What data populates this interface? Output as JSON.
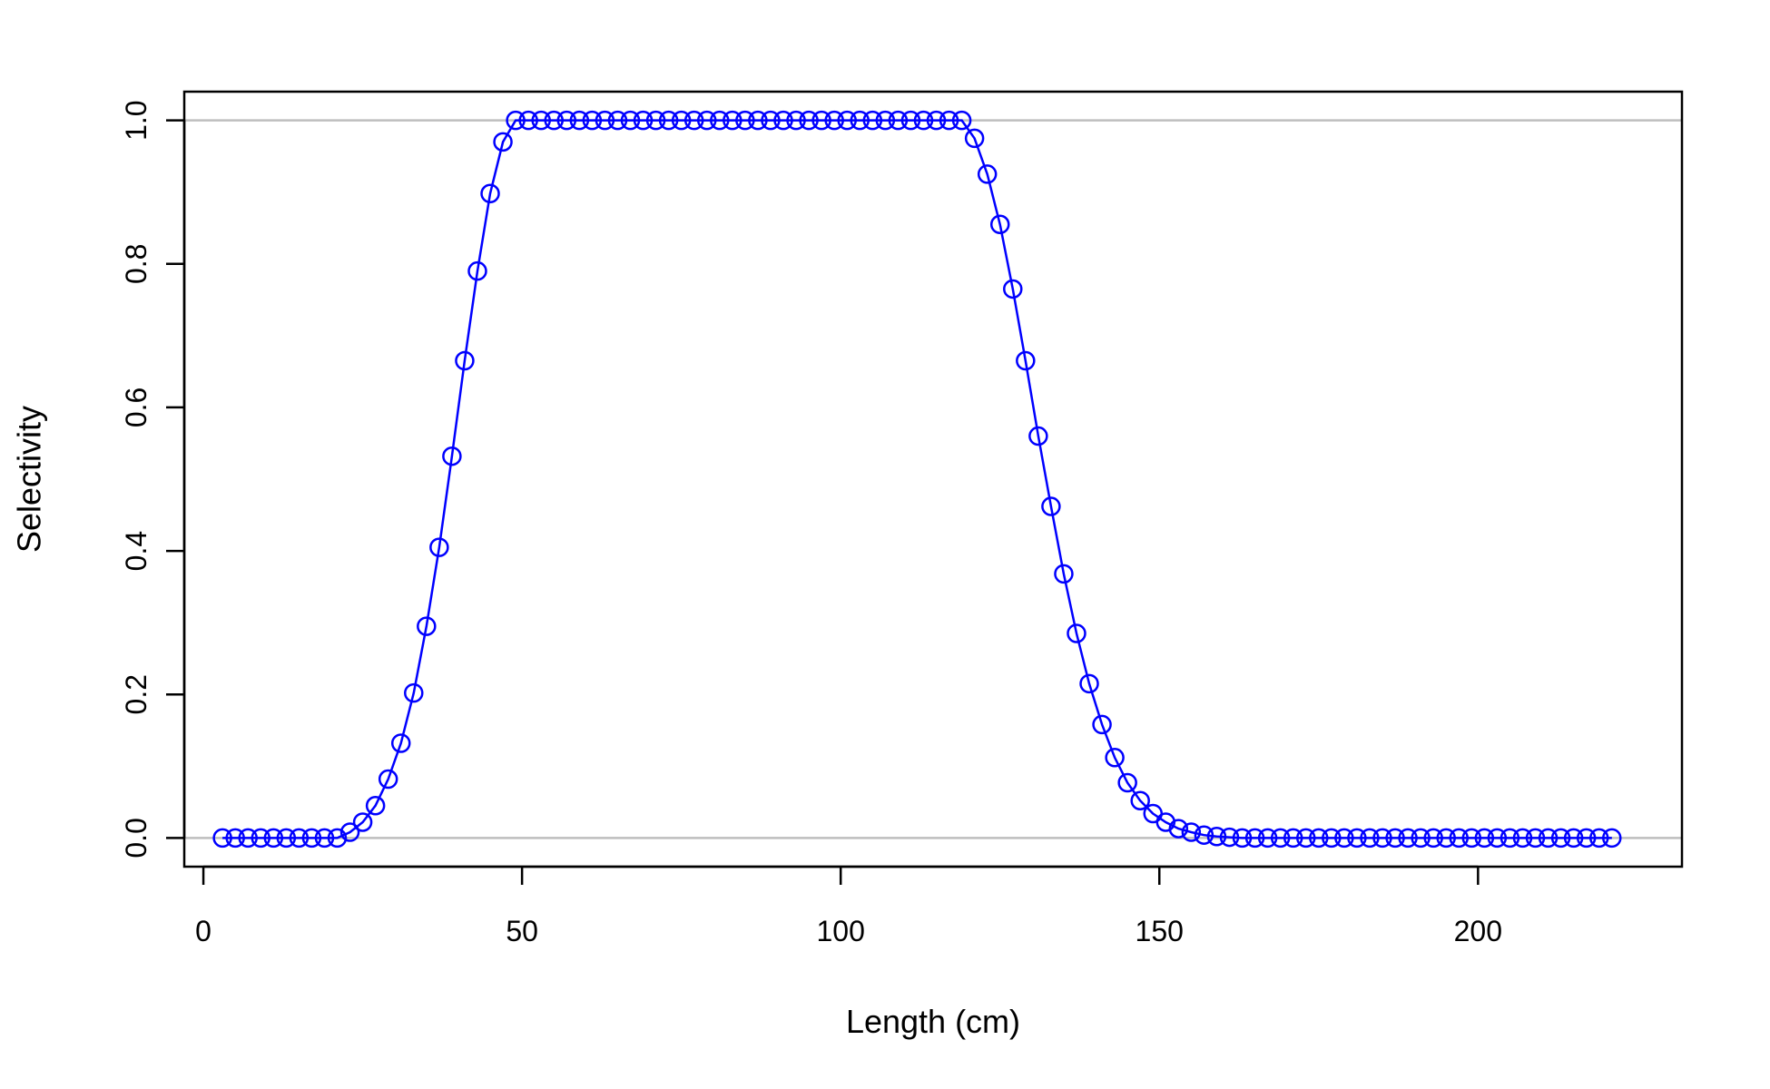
{
  "chart_data": {
    "type": "line",
    "title": "",
    "xlabel": "Length (cm)",
    "ylabel": "Selectivity",
    "xlim": [
      -3,
      232
    ],
    "ylim": [
      -0.04,
      1.04
    ],
    "xticks": [
      0,
      50,
      100,
      150,
      200
    ],
    "xtick_labels": [
      "0",
      "50",
      "100",
      "150",
      "200"
    ],
    "yticks": [
      0.0,
      0.2,
      0.4,
      0.6,
      0.8,
      1.0
    ],
    "ytick_labels": [
      "0.0",
      "0.2",
      "0.4",
      "0.6",
      "0.8",
      "1.0"
    ],
    "reference_lines_y": [
      0,
      1
    ],
    "grid": false,
    "legend": "none",
    "colors": {
      "series": "#0000ff",
      "reference": "#bebebe",
      "axis": "#000000"
    },
    "series": [
      {
        "marker": "open-circle",
        "x": [
          3,
          5,
          7,
          9,
          11,
          13,
          15,
          17,
          19,
          21,
          23,
          25,
          27,
          29,
          31,
          33,
          35,
          37,
          39,
          41,
          43,
          45,
          47,
          49,
          51,
          53,
          55,
          57,
          59,
          61,
          63,
          65,
          67,
          69,
          71,
          73,
          75,
          77,
          79,
          81,
          83,
          85,
          87,
          89,
          91,
          93,
          95,
          97,
          99,
          101,
          103,
          105,
          107,
          109,
          111,
          113,
          115,
          117,
          119,
          121,
          123,
          125,
          127,
          129,
          131,
          133,
          135,
          137,
          139,
          141,
          143,
          145,
          147,
          149,
          151,
          153,
          155,
          157,
          159,
          161,
          163,
          165,
          167,
          169,
          171,
          173,
          175,
          177,
          179,
          181,
          183,
          185,
          187,
          189,
          191,
          193,
          195,
          197,
          199,
          201,
          203,
          205,
          207,
          209,
          211,
          213,
          215,
          217,
          219,
          221
        ],
        "y": [
          0,
          0,
          0,
          0,
          0,
          0,
          0,
          0,
          0,
          0,
          0.008,
          0.022,
          0.045,
          0.082,
          0.132,
          0.202,
          0.295,
          0.405,
          0.532,
          0.665,
          0.79,
          0.898,
          0.97,
          1,
          1,
          1,
          1,
          1,
          1,
          1,
          1,
          1,
          1,
          1,
          1,
          1,
          1,
          1,
          1,
          1,
          1,
          1,
          1,
          1,
          1,
          1,
          1,
          1,
          1,
          1,
          1,
          1,
          1,
          1,
          1,
          1,
          1,
          1,
          1,
          0.975,
          0.925,
          0.855,
          0.765,
          0.665,
          0.56,
          0.462,
          0.368,
          0.285,
          0.215,
          0.158,
          0.112,
          0.077,
          0.052,
          0.034,
          0.022,
          0.013,
          0.008,
          0.004,
          0.002,
          0.001,
          0,
          0,
          0,
          0,
          0,
          0,
          0,
          0,
          0,
          0,
          0,
          0,
          0,
          0,
          0,
          0,
          0,
          0,
          0,
          0,
          0,
          0,
          0,
          0,
          0,
          0,
          0,
          0,
          0,
          0
        ]
      }
    ]
  }
}
